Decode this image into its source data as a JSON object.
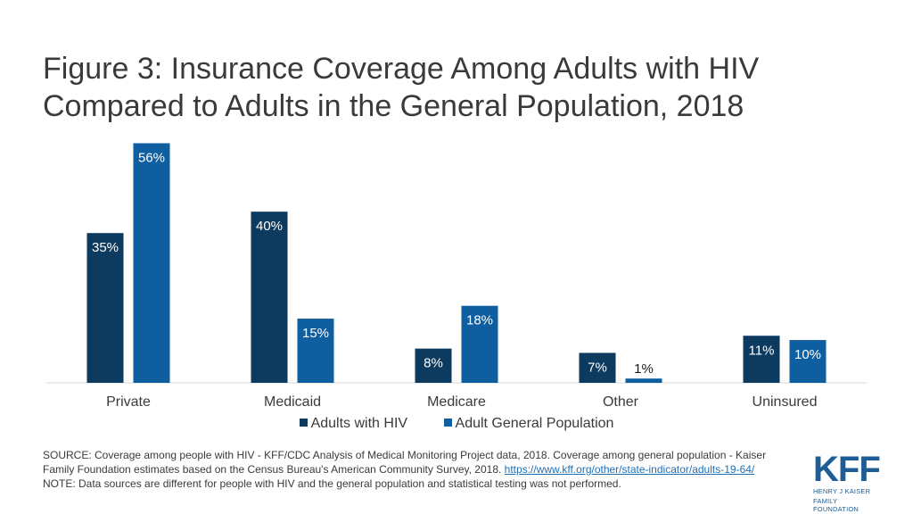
{
  "title": "Figure 3: Insurance Coverage Among Adults with HIV Compared to Adults in the General Population, 2018",
  "chart_data": {
    "type": "bar",
    "title": "Figure 3: Insurance Coverage Among Adults with HIV Compared to Adults in the General Population, 2018",
    "xlabel": "",
    "ylabel": "",
    "ylim": [
      0,
      60
    ],
    "grid": false,
    "legend_position": "bottom",
    "categories": [
      "Private",
      "Medicaid",
      "Medicare",
      "Other",
      "Uninsured"
    ],
    "series": [
      {
        "name": "Adults with HIV",
        "color": "#0d3a5f",
        "values": [
          35,
          40,
          8,
          7,
          11
        ],
        "labels": [
          "35%",
          "40%",
          "8%",
          "7%",
          "11%"
        ]
      },
      {
        "name": "Adult General Population",
        "color": "#0f5fa0",
        "values": [
          56,
          15,
          18,
          1,
          10
        ],
        "labels": [
          "56%",
          "15%",
          "18%",
          "1%",
          "10%"
        ]
      }
    ]
  },
  "source": {
    "text_before_link": "SOURCE: Coverage among people with HIV  - KFF/CDC Analysis of Medical Monitoring Project data, 2018. Coverage among general population - Kaiser Family Foundation estimates based on the Census Bureau's American Community Survey, 2018. ",
    "link_text": "https://www.kff.org/other/state-indicator/adults-19-64/",
    "note": "NOTE: Data sources are different for people with HIV and the general population and statistical testing was not performed."
  },
  "logo": {
    "mark": "KFF",
    "line1": "HENRY J KAISER",
    "line2": "FAMILY FOUNDATION"
  }
}
